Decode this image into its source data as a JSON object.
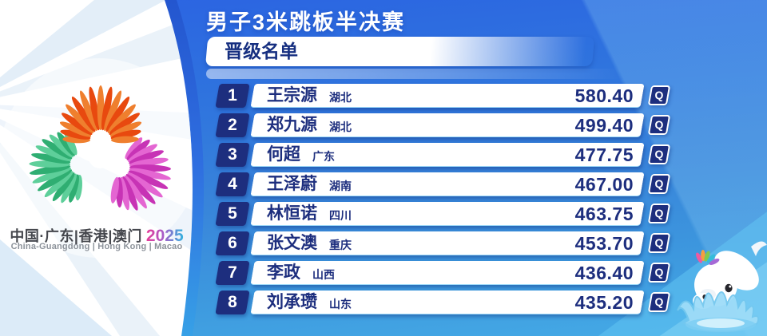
{
  "header": {
    "title": "男子3米跳板半决赛",
    "subtitle": "晋级名单"
  },
  "branding": {
    "logo_icon": "fifteenth-national-games-emblem",
    "host_cn": "中国·广东|香港|澳门",
    "year": "2025",
    "host_en": "China-Guangdong | Hong Kong | Macao"
  },
  "results": [
    {
      "rank": "1",
      "name": "王宗源",
      "province": "湖北",
      "score": "580.40",
      "qualified": "Q"
    },
    {
      "rank": "2",
      "name": "郑九源",
      "province": "湖北",
      "score": "499.40",
      "qualified": "Q"
    },
    {
      "rank": "3",
      "name": "何超",
      "province": "广东",
      "score": "477.75",
      "qualified": "Q"
    },
    {
      "rank": "4",
      "name": "王泽蔚",
      "province": "湖南",
      "score": "467.00",
      "qualified": "Q"
    },
    {
      "rank": "5",
      "name": "林恒诺",
      "province": "四川",
      "score": "463.75",
      "qualified": "Q"
    },
    {
      "rank": "6",
      "name": "张文澳",
      "province": "重庆",
      "score": "453.70",
      "qualified": "Q"
    },
    {
      "rank": "7",
      "name": "李政",
      "province": "山西",
      "score": "436.40",
      "qualified": "Q"
    },
    {
      "rank": "8",
      "name": "刘承瓒",
      "province": "山东",
      "score": "435.20",
      "qualified": "Q"
    }
  ],
  "mascot_icon": "white-dolphin-mascot-splash",
  "colors": {
    "navy": "#1d2e7e",
    "background_top": "#2b63e2",
    "background_bottom": "#45abe6",
    "cyan_accent": "#64c8f4",
    "logo_orange": "#e8490f",
    "logo_green": "#2fae72",
    "logo_magenta": "#c733b5",
    "year_gradient_start": "#e83a98",
    "year_gradient_end": "#2fb4df"
  }
}
